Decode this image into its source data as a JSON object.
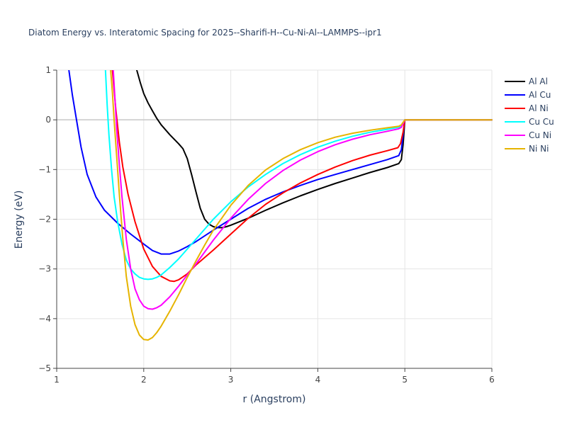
{
  "chart_data": {
    "type": "line",
    "title": "Diatom Energy vs. Interatomic Spacing for 2025--Sharifi-H--Cu-Ni-Al--LAMMPS--ipr1",
    "xlabel": "r (Angstrom)",
    "ylabel": "Energy (eV)",
    "xlim": [
      1,
      6
    ],
    "ylim": [
      -5,
      1
    ],
    "xticks": [
      1,
      2,
      3,
      4,
      5,
      6
    ],
    "yticks": [
      1,
      0,
      -1,
      -2,
      -3,
      -4,
      -5
    ],
    "xtick_labels": [
      "1",
      "2",
      "3",
      "4",
      "5",
      "6"
    ],
    "ytick_labels": [
      "1",
      "0",
      "−1",
      "−2",
      "−3",
      "−4",
      "−5"
    ],
    "grid": true,
    "legend_position": "top-right",
    "series": [
      {
        "name": "Al Al",
        "color": "#000000",
        "x": [
          1.92,
          1.96,
          2.0,
          2.05,
          2.1,
          2.15,
          2.2,
          2.3,
          2.4,
          2.45,
          2.5,
          2.55,
          2.6,
          2.65,
          2.7,
          2.75,
          2.8,
          2.85,
          2.9,
          2.95,
          3.0,
          3.2,
          3.4,
          3.6,
          3.8,
          4.0,
          4.2,
          4.4,
          4.6,
          4.8,
          4.93,
          4.96,
          4.98,
          5.0,
          5.5,
          6.0
        ],
        "y": [
          1.0,
          0.75,
          0.53,
          0.34,
          0.18,
          0.03,
          -0.1,
          -0.3,
          -0.48,
          -0.58,
          -0.78,
          -1.1,
          -1.45,
          -1.78,
          -2.0,
          -2.1,
          -2.15,
          -2.17,
          -2.17,
          -2.15,
          -2.12,
          -1.98,
          -1.82,
          -1.67,
          -1.53,
          -1.4,
          -1.28,
          -1.17,
          -1.06,
          -0.96,
          -0.88,
          -0.8,
          -0.5,
          0.0,
          0.0,
          0.0
        ]
      },
      {
        "name": "Al Cu",
        "color": "#0000ff",
        "x": [
          1.14,
          1.18,
          1.22,
          1.28,
          1.35,
          1.45,
          1.55,
          1.7,
          1.85,
          2.0,
          2.1,
          2.2,
          2.3,
          2.4,
          2.5,
          2.6,
          2.8,
          3.0,
          3.2,
          3.4,
          3.6,
          3.8,
          4.0,
          4.2,
          4.4,
          4.6,
          4.8,
          4.93,
          4.96,
          4.98,
          5.0,
          5.5,
          6.0
        ],
        "y": [
          1.0,
          0.5,
          0.08,
          -0.55,
          -1.1,
          -1.55,
          -1.82,
          -2.08,
          -2.3,
          -2.5,
          -2.63,
          -2.7,
          -2.7,
          -2.64,
          -2.55,
          -2.45,
          -2.22,
          -2.0,
          -1.78,
          -1.6,
          -1.45,
          -1.32,
          -1.2,
          -1.1,
          -1.0,
          -0.9,
          -0.8,
          -0.72,
          -0.6,
          -0.3,
          0.0,
          0.0,
          0.0
        ]
      },
      {
        "name": "Al Ni",
        "color": "#ff0000",
        "x": [
          1.64,
          1.66,
          1.68,
          1.72,
          1.76,
          1.82,
          1.9,
          2.0,
          2.1,
          2.2,
          2.3,
          2.35,
          2.4,
          2.5,
          2.6,
          2.8,
          3.0,
          3.2,
          3.4,
          3.6,
          3.8,
          4.0,
          4.2,
          4.4,
          4.6,
          4.8,
          4.92,
          4.95,
          4.98,
          5.0,
          5.5,
          6.0
        ],
        "y": [
          1.0,
          0.6,
          0.2,
          -0.45,
          -0.95,
          -1.5,
          -2.05,
          -2.6,
          -2.95,
          -3.15,
          -3.24,
          -3.25,
          -3.22,
          -3.1,
          -2.92,
          -2.62,
          -2.3,
          -1.98,
          -1.7,
          -1.47,
          -1.27,
          -1.1,
          -0.95,
          -0.82,
          -0.71,
          -0.62,
          -0.56,
          -0.48,
          -0.25,
          0.0,
          0.0,
          0.0
        ]
      },
      {
        "name": "Cu Cu",
        "color": "#00ffff",
        "x": [
          1.56,
          1.58,
          1.6,
          1.63,
          1.66,
          1.7,
          1.75,
          1.8,
          1.85,
          1.9,
          1.95,
          2.0,
          2.05,
          2.1,
          2.15,
          2.2,
          2.3,
          2.4,
          2.5,
          2.6,
          2.8,
          3.0,
          3.2,
          3.4,
          3.6,
          3.8,
          4.0,
          4.2,
          4.4,
          4.6,
          4.8,
          4.93,
          4.96,
          4.98,
          5.0,
          5.5,
          6.0
        ],
        "y": [
          1.0,
          0.3,
          -0.3,
          -1.0,
          -1.55,
          -2.05,
          -2.5,
          -2.82,
          -3.0,
          -3.1,
          -3.17,
          -3.2,
          -3.21,
          -3.2,
          -3.17,
          -3.12,
          -2.97,
          -2.8,
          -2.6,
          -2.4,
          -2.0,
          -1.65,
          -1.35,
          -1.1,
          -0.88,
          -0.7,
          -0.55,
          -0.43,
          -0.33,
          -0.25,
          -0.19,
          -0.15,
          -0.12,
          -0.06,
          0.0,
          0.0,
          0.0
        ]
      },
      {
        "name": "Cu Ni",
        "color": "#ff00ff",
        "x": [
          1.65,
          1.67,
          1.69,
          1.72,
          1.75,
          1.8,
          1.85,
          1.9,
          1.95,
          2.0,
          2.05,
          2.1,
          2.15,
          2.2,
          2.3,
          2.4,
          2.5,
          2.6,
          2.8,
          3.0,
          3.2,
          3.4,
          3.6,
          3.8,
          4.0,
          4.2,
          4.4,
          4.6,
          4.8,
          4.93,
          4.96,
          4.98,
          5.0,
          5.5,
          6.0
        ],
        "y": [
          1.0,
          0.4,
          -0.2,
          -0.9,
          -1.55,
          -2.4,
          -3.0,
          -3.4,
          -3.62,
          -3.75,
          -3.8,
          -3.81,
          -3.78,
          -3.73,
          -3.56,
          -3.35,
          -3.12,
          -2.9,
          -2.42,
          -1.98,
          -1.6,
          -1.28,
          -1.02,
          -0.81,
          -0.64,
          -0.5,
          -0.39,
          -0.3,
          -0.23,
          -0.18,
          -0.15,
          -0.08,
          0.0,
          0.0,
          0.0
        ]
      },
      {
        "name": "Ni Ni",
        "color": "#e6b400",
        "x": [
          1.62,
          1.64,
          1.66,
          1.69,
          1.72,
          1.76,
          1.8,
          1.85,
          1.9,
          1.95,
          2.0,
          2.05,
          2.1,
          2.15,
          2.2,
          2.3,
          2.4,
          2.5,
          2.6,
          2.7,
          2.8,
          3.0,
          3.2,
          3.4,
          3.6,
          3.8,
          4.0,
          4.2,
          4.4,
          4.6,
          4.8,
          4.93,
          4.96,
          4.98,
          5.0,
          5.5,
          6.0
        ],
        "y": [
          1.0,
          0.55,
          0.0,
          -0.75,
          -1.5,
          -2.4,
          -3.15,
          -3.75,
          -4.12,
          -4.33,
          -4.42,
          -4.43,
          -4.38,
          -4.28,
          -4.15,
          -3.85,
          -3.52,
          -3.17,
          -2.84,
          -2.52,
          -2.22,
          -1.72,
          -1.32,
          -1.01,
          -0.78,
          -0.6,
          -0.46,
          -0.35,
          -0.27,
          -0.21,
          -0.16,
          -0.13,
          -0.1,
          -0.05,
          0.0,
          0.0,
          0.0
        ]
      }
    ]
  }
}
